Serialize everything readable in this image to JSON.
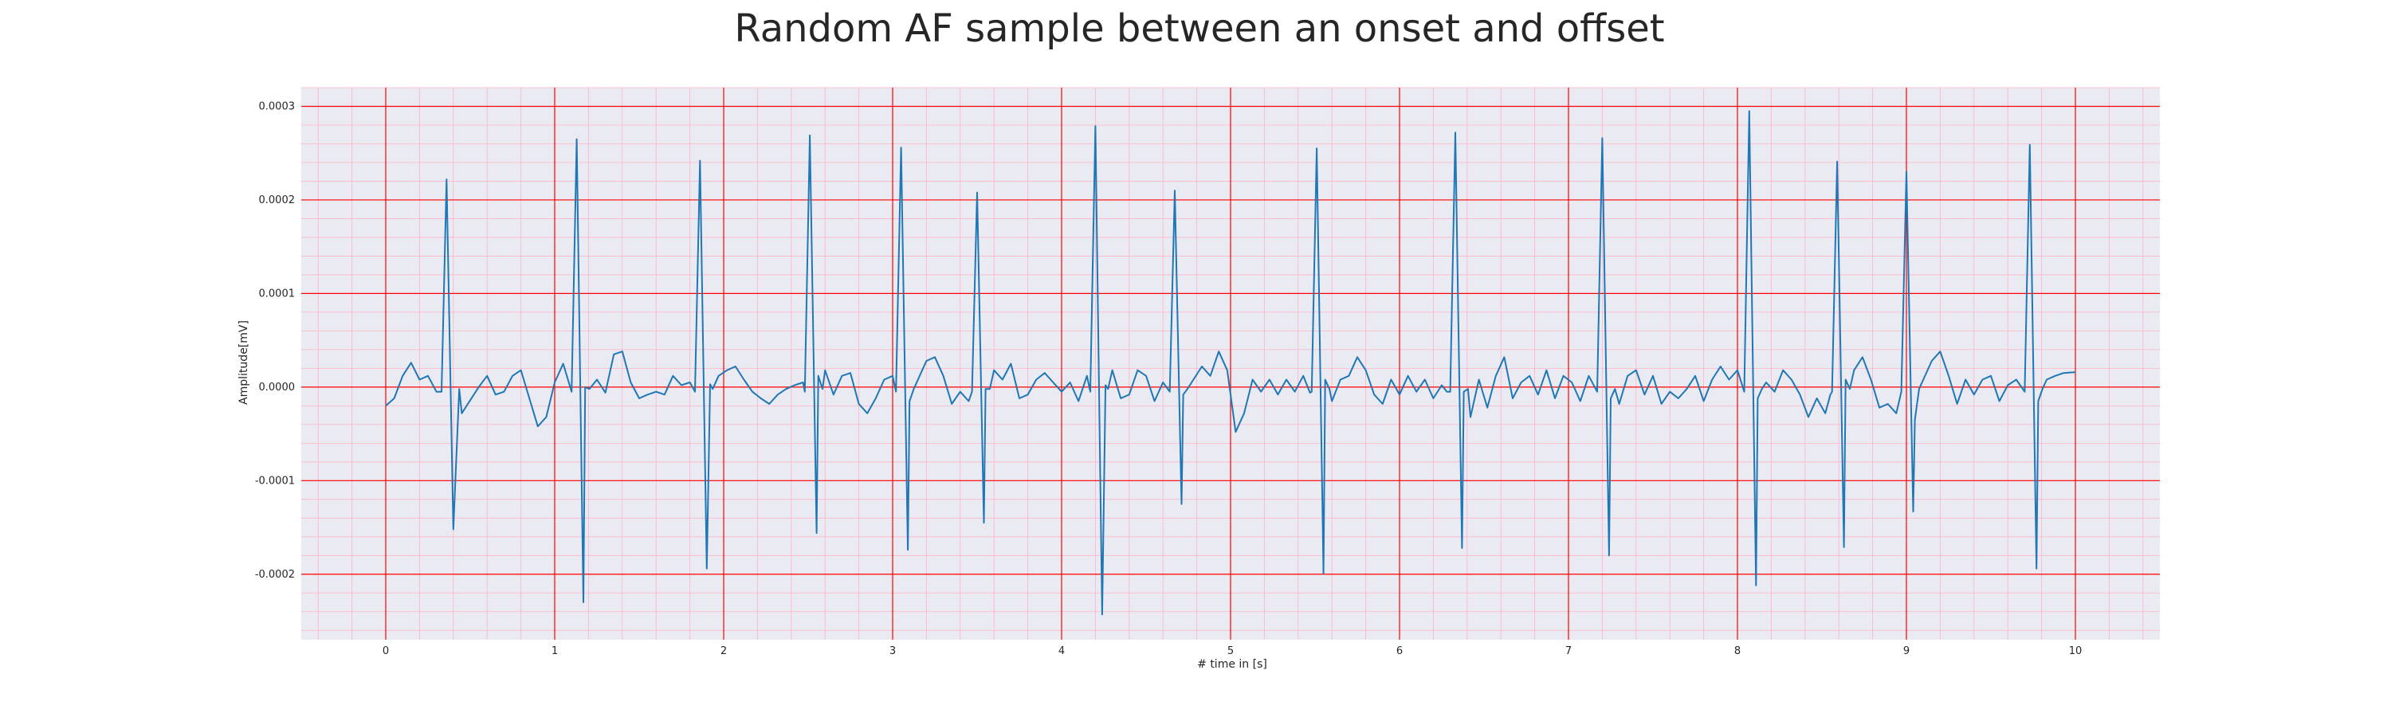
{
  "chart_data": {
    "type": "line",
    "title": "Random AF sample between an onset and offset",
    "xlabel": "# time in [s]",
    "ylabel": "Amplitude[mV]",
    "xlim": [
      -0.5,
      10.5
    ],
    "ylim": [
      -0.00027,
      0.00032
    ],
    "x_ticks": [
      0,
      1,
      2,
      3,
      4,
      5,
      6,
      7,
      8,
      9,
      10
    ],
    "x_tick_labels": [
      "0",
      "1",
      "2",
      "3",
      "4",
      "5",
      "6",
      "7",
      "8",
      "9",
      "10"
    ],
    "y_ticks": [
      0.0003,
      0.0002,
      0.0001,
      0.0,
      -0.0001,
      -0.0002
    ],
    "y_tick_labels": [
      "0.0003",
      "0.0002",
      "0.0001",
      "0.0000",
      "-0.0001",
      "-0.0002"
    ],
    "grid": true,
    "minor_grid": true,
    "plot_background": "#eaeaf2",
    "major_grid_color": "#ff0000",
    "minor_grid_color": "#ffb3c6",
    "series": [
      {
        "color": "#1f77b4",
        "beats": [
          {
            "t": 0.36,
            "peak": 0.000222,
            "trough": -0.000152
          },
          {
            "t": 1.13,
            "peak": 0.000265,
            "trough": -0.00023
          },
          {
            "t": 1.86,
            "peak": 0.000242,
            "trough": -0.000194
          },
          {
            "t": 2.51,
            "peak": 0.000269,
            "trough": -0.000156
          },
          {
            "t": 3.05,
            "peak": 0.000256,
            "trough": -0.000174
          },
          {
            "t": 3.5,
            "peak": 0.000208,
            "trough": -0.000145
          },
          {
            "t": 4.2,
            "peak": 0.000279,
            "trough": -0.000243
          },
          {
            "t": 4.67,
            "peak": 0.00021,
            "trough": -0.000125
          },
          {
            "t": 5.51,
            "peak": 0.000255,
            "trough": -0.000199
          },
          {
            "t": 6.33,
            "peak": 0.000272,
            "trough": -0.000172
          },
          {
            "t": 7.2,
            "peak": 0.000266,
            "trough": -0.00018
          },
          {
            "t": 8.07,
            "peak": 0.000295,
            "trough": -0.000212
          },
          {
            "t": 8.59,
            "peak": 0.000241,
            "trough": -0.000171
          },
          {
            "t": 9.0,
            "peak": 0.00023,
            "trough": -0.000133
          },
          {
            "t": 9.73,
            "peak": 0.000259,
            "trough": -0.000194
          }
        ],
        "baseline": [
          [
            0.0,
            -2e-05
          ],
          [
            0.05,
            -1.2e-05
          ],
          [
            0.1,
            1.2e-05
          ],
          [
            0.15,
            2.6e-05
          ],
          [
            0.2,
            8e-06
          ],
          [
            0.25,
            1.2e-05
          ],
          [
            0.3,
            -5e-06
          ],
          [
            0.45,
            -2.8e-05
          ],
          [
            0.55,
            0.0
          ],
          [
            0.6,
            1.2e-05
          ],
          [
            0.65,
            -8e-06
          ],
          [
            0.7,
            -5e-06
          ],
          [
            0.75,
            1.2e-05
          ],
          [
            0.8,
            1.8e-05
          ],
          [
            0.85,
            -1.2e-05
          ],
          [
            0.9,
            -4.2e-05
          ],
          [
            0.95,
            -3.2e-05
          ],
          [
            1.0,
            5e-06
          ],
          [
            1.05,
            2.5e-05
          ],
          [
            1.18,
            0.0
          ],
          [
            1.25,
            8e-06
          ],
          [
            1.3,
            -6e-06
          ],
          [
            1.35,
            3.5e-05
          ],
          [
            1.4,
            3.8e-05
          ],
          [
            1.45,
            5e-06
          ],
          [
            1.5,
            -1.2e-05
          ],
          [
            1.55,
            -8e-06
          ],
          [
            1.6,
            -5e-06
          ],
          [
            1.65,
            -8e-06
          ],
          [
            1.7,
            1.2e-05
          ],
          [
            1.75,
            2e-06
          ],
          [
            1.8,
            5e-06
          ],
          [
            1.92,
            3e-06
          ],
          [
            1.97,
            1.2e-05
          ],
          [
            2.02,
            1.8e-05
          ],
          [
            2.07,
            2.2e-05
          ],
          [
            2.12,
            8e-06
          ],
          [
            2.17,
            -5e-06
          ],
          [
            2.22,
            -1.2e-05
          ],
          [
            2.27,
            -1.8e-05
          ],
          [
            2.32,
            -8e-06
          ],
          [
            2.37,
            -2e-06
          ],
          [
            2.42,
            2e-06
          ],
          [
            2.47,
            5e-06
          ],
          [
            2.56,
            1.2e-05
          ],
          [
            2.6,
            1.8e-05
          ],
          [
            2.65,
            -8e-06
          ],
          [
            2.7,
            1.2e-05
          ],
          [
            2.75,
            1.5e-05
          ],
          [
            2.8,
            -1.8e-05
          ],
          [
            2.85,
            -2.8e-05
          ],
          [
            2.9,
            -1.2e-05
          ],
          [
            2.95,
            8e-06
          ],
          [
            3.0,
            1.2e-05
          ],
          [
            3.1,
            -1.5e-05
          ],
          [
            3.15,
            8e-06
          ],
          [
            3.2,
            2.8e-05
          ],
          [
            3.25,
            3.2e-05
          ],
          [
            3.3,
            1.2e-05
          ],
          [
            3.35,
            -1.8e-05
          ],
          [
            3.4,
            -5e-06
          ],
          [
            3.45,
            -1.5e-05
          ],
          [
            3.55,
            -2e-06
          ],
          [
            3.6,
            1.8e-05
          ],
          [
            3.65,
            8e-06
          ],
          [
            3.7,
            2.5e-05
          ],
          [
            3.75,
            -1.2e-05
          ],
          [
            3.8,
            -8e-06
          ],
          [
            3.85,
            8e-06
          ],
          [
            3.9,
            1.5e-05
          ],
          [
            3.95,
            5e-06
          ],
          [
            4.0,
            -5e-06
          ],
          [
            4.05,
            5e-06
          ],
          [
            4.1,
            -1.5e-05
          ],
          [
            4.15,
            1.2e-05
          ],
          [
            4.26,
            2e-06
          ],
          [
            4.3,
            1.8e-05
          ],
          [
            4.35,
            -1.2e-05
          ],
          [
            4.4,
            -8e-06
          ],
          [
            4.45,
            1.8e-05
          ],
          [
            4.5,
            1.2e-05
          ],
          [
            4.55,
            -1.5e-05
          ],
          [
            4.6,
            5e-06
          ],
          [
            4.72,
            -8e-06
          ],
          [
            4.78,
            8e-06
          ],
          [
            4.83,
            2.2e-05
          ],
          [
            4.88,
            1.2e-05
          ],
          [
            4.93,
            3.8e-05
          ],
          [
            4.98,
            1.8e-05
          ],
          [
            5.03,
            -4.8e-05
          ],
          [
            5.08,
            -2.8e-05
          ],
          [
            5.13,
            8e-06
          ],
          [
            5.18,
            -5e-06
          ],
          [
            5.23,
            8e-06
          ],
          [
            5.28,
            -8e-06
          ],
          [
            5.33,
            8e-06
          ],
          [
            5.38,
            -5e-06
          ],
          [
            5.43,
            1.2e-05
          ],
          [
            5.47,
            -6e-06
          ],
          [
            5.56,
            8e-06
          ],
          [
            5.6,
            -1.5e-05
          ],
          [
            5.65,
            8e-06
          ],
          [
            5.7,
            1.2e-05
          ],
          [
            5.75,
            3.2e-05
          ],
          [
            5.8,
            1.8e-05
          ],
          [
            5.85,
            -8e-06
          ],
          [
            5.9,
            -1.8e-05
          ],
          [
            5.95,
            8e-06
          ],
          [
            6.0,
            -8e-06
          ],
          [
            6.05,
            1.2e-05
          ],
          [
            6.1,
            -5e-06
          ],
          [
            6.15,
            8e-06
          ],
          [
            6.2,
            -1.2e-05
          ],
          [
            6.25,
            2e-06
          ],
          [
            6.28,
            -5e-06
          ],
          [
            6.38,
            -5e-06
          ],
          [
            6.42,
            -3.2e-05
          ],
          [
            6.47,
            8e-06
          ],
          [
            6.52,
            -2.2e-05
          ],
          [
            6.57,
            1.2e-05
          ],
          [
            6.62,
            3.2e-05
          ],
          [
            6.67,
            -1.2e-05
          ],
          [
            6.72,
            5e-06
          ],
          [
            6.77,
            1.2e-05
          ],
          [
            6.82,
            -8e-06
          ],
          [
            6.87,
            1.8e-05
          ],
          [
            6.92,
            -1.2e-05
          ],
          [
            6.97,
            1.2e-05
          ],
          [
            7.02,
            5e-06
          ],
          [
            7.07,
            -1.5e-05
          ],
          [
            7.12,
            1.2e-05
          ],
          [
            7.25,
            -1.2e-05
          ],
          [
            7.3,
            -1.8e-05
          ],
          [
            7.35,
            1.2e-05
          ],
          [
            7.4,
            1.8e-05
          ],
          [
            7.45,
            -8e-06
          ],
          [
            7.5,
            1.2e-05
          ],
          [
            7.55,
            -1.8e-05
          ],
          [
            7.6,
            -5e-06
          ],
          [
            7.65,
            -1.2e-05
          ],
          [
            7.7,
            -2e-06
          ],
          [
            7.75,
            1.2e-05
          ],
          [
            7.8,
            -1.5e-05
          ],
          [
            7.85,
            8e-06
          ],
          [
            7.9,
            2.2e-05
          ],
          [
            7.95,
            8e-06
          ],
          [
            8.0,
            1.8e-05
          ],
          [
            8.12,
            -1.2e-05
          ],
          [
            8.17,
            5e-06
          ],
          [
            8.22,
            -5e-06
          ],
          [
            8.27,
            1.8e-05
          ],
          [
            8.32,
            8e-06
          ],
          [
            8.37,
            -8e-06
          ],
          [
            8.42,
            -3.2e-05
          ],
          [
            8.47,
            -1.2e-05
          ],
          [
            8.52,
            -2.8e-05
          ],
          [
            8.55,
            -8e-06
          ],
          [
            8.64,
            8e-06
          ],
          [
            8.69,
            1.8e-05
          ],
          [
            8.74,
            3.2e-05
          ],
          [
            8.79,
            8e-06
          ],
          [
            8.84,
            -2.2e-05
          ],
          [
            8.89,
            -1.8e-05
          ],
          [
            8.94,
            -2.8e-05
          ],
          [
            9.05,
            -3.5e-05
          ],
          [
            9.1,
            8e-06
          ],
          [
            9.15,
            2.8e-05
          ],
          [
            9.2,
            3.8e-05
          ],
          [
            9.25,
            1.2e-05
          ],
          [
            9.3,
            -1.8e-05
          ],
          [
            9.35,
            8e-06
          ],
          [
            9.4,
            -8e-06
          ],
          [
            9.45,
            8e-06
          ],
          [
            9.5,
            1.2e-05
          ],
          [
            9.55,
            -1.5e-05
          ],
          [
            9.6,
            2e-06
          ],
          [
            9.65,
            8e-06
          ],
          [
            9.7,
            -5e-06
          ],
          [
            9.78,
            -1.5e-05
          ],
          [
            9.83,
            8e-06
          ],
          [
            9.88,
            1.2e-05
          ],
          [
            9.93,
            1.5e-05
          ],
          [
            10.0,
            1.6e-05
          ]
        ]
      }
    ]
  }
}
